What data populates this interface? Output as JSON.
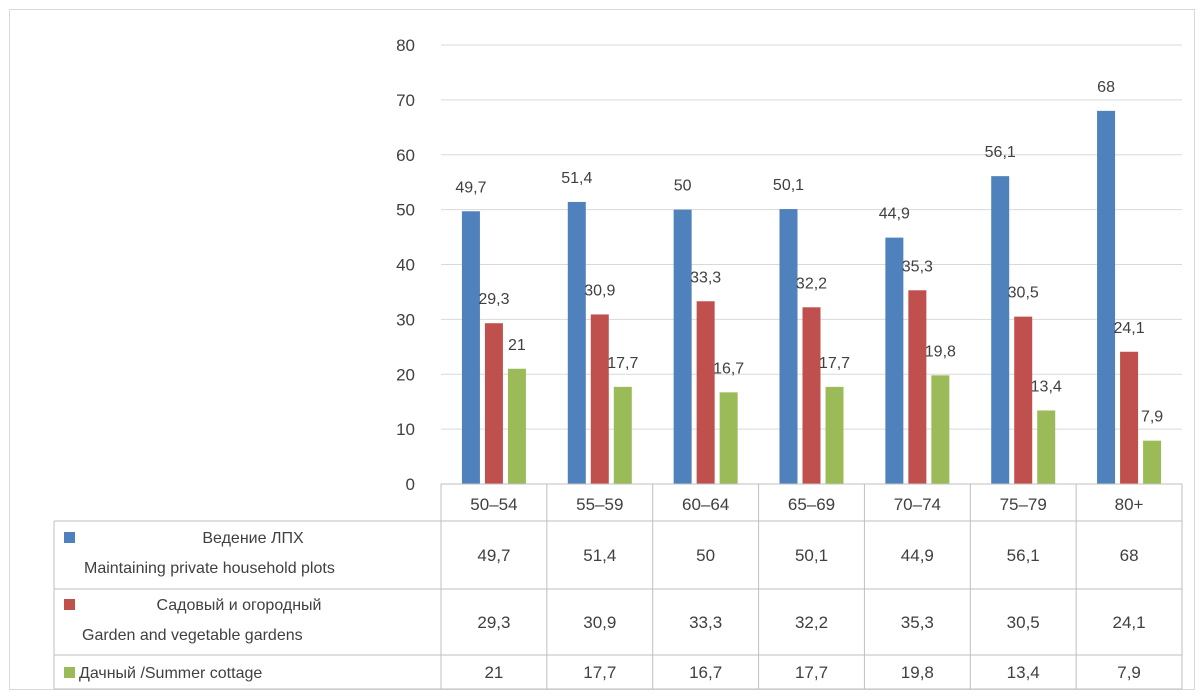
{
  "chart_data": {
    "type": "bar",
    "categories": [
      "50–54",
      "55–59",
      "60–64",
      "65–69",
      "70–74",
      "75–79",
      "80+"
    ],
    "series": [
      {
        "name_ru": "Ведение ЛПХ",
        "name_en": "Maintaining private household plots",
        "color": "#4f81bd",
        "values": [
          49.7,
          51.4,
          50,
          50.1,
          44.9,
          56.1,
          68
        ],
        "labels": [
          "49,7",
          "51,4",
          "50",
          "50,1",
          "44,9",
          "56,1",
          "68"
        ]
      },
      {
        "name_ru": "Садовый и огородный",
        "name_en": "Garden and vegetable gardens",
        "color": "#c0504d",
        "values": [
          29.3,
          30.9,
          33.3,
          32.2,
          35.3,
          30.5,
          24.1
        ],
        "labels": [
          "29,3",
          "30,9",
          "33,3",
          "32,2",
          "35,3",
          "30,5",
          "24,1"
        ]
      },
      {
        "name": "Дачный /Summer cottage",
        "color": "#9bbb59",
        "values": [
          21,
          17.7,
          16.7,
          17.7,
          19.8,
          13.4,
          7.9
        ],
        "labels": [
          "21",
          "17,7",
          "16,7",
          "17,7",
          "19,8",
          "13,4",
          "7,9"
        ]
      }
    ],
    "ylim": [
      0,
      80
    ],
    "yticks": [
      0,
      10,
      20,
      30,
      40,
      50,
      60,
      70,
      80
    ],
    "grid": true,
    "legend": "data table below chart"
  }
}
